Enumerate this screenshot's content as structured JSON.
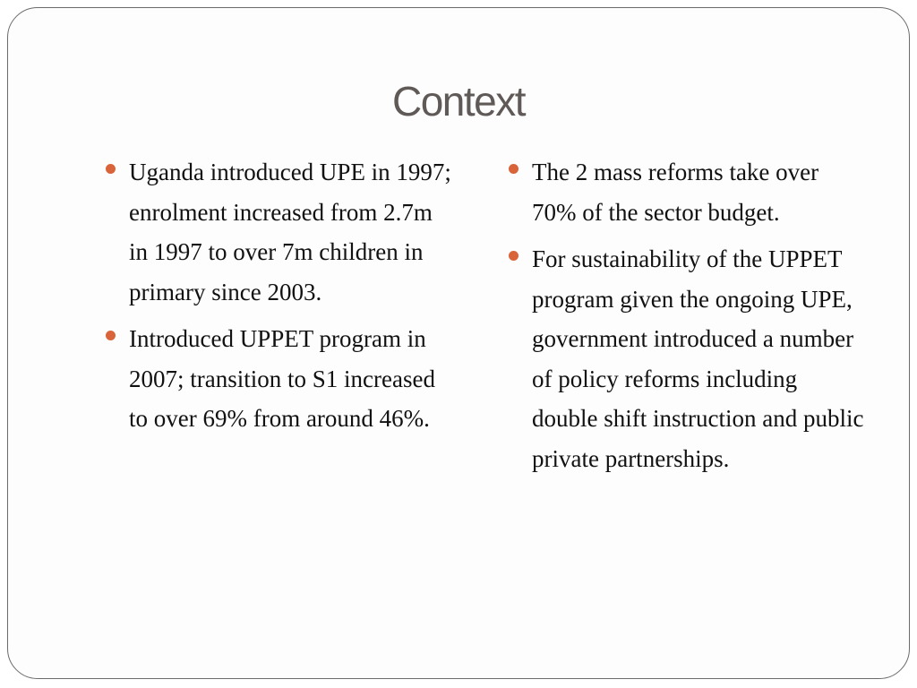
{
  "slide": {
    "title": "Context",
    "accent_color": "#d9643a",
    "bullet_icon": "bullet-dot-icon",
    "left_column": [
      {
        "text": "Uganda introduced UPE in 1997; enrolment increased from 2.7m in 1997 to over 7m children in primary since 2003."
      },
      {
        "text": "Introduced UPPET program in 2007; transition to S1 increased to over 69% from around 46%."
      }
    ],
    "right_column": [
      {
        "text": "The 2 mass reforms take over 70% of the sector budget."
      },
      {
        "text": "For sustainability of the UPPET program given the ongoing UPE, government introduced a number of policy reforms including double shift instruction and public private partnerships."
      }
    ]
  }
}
